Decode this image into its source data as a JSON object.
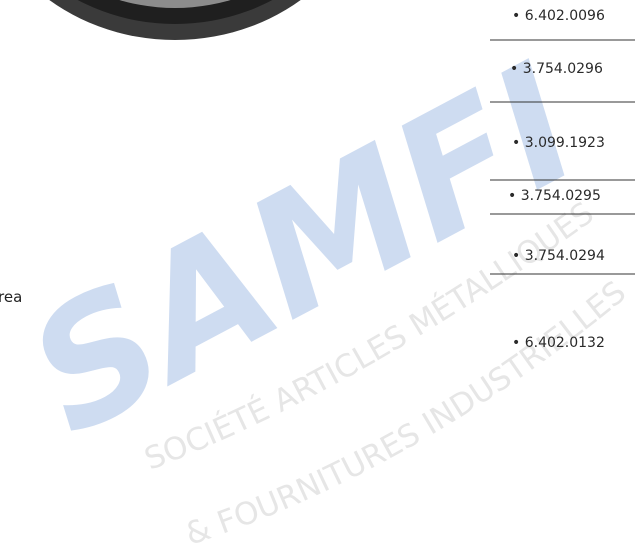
{
  "side_text": "rea",
  "codes": [
    "• 6.402.0096",
    "• 3.754.0296",
    "• 3.099.1923",
    "• 3.754.0295",
    "• 3.754.0294",
    "• 6.402.0132"
  ],
  "watermark": {
    "logo": "SAMFI",
    "line1": "SOCIÉTÉ ARTICLES MÉTALLIQUES",
    "line2": "& FOURNITURES INDUSTRIELLES"
  }
}
